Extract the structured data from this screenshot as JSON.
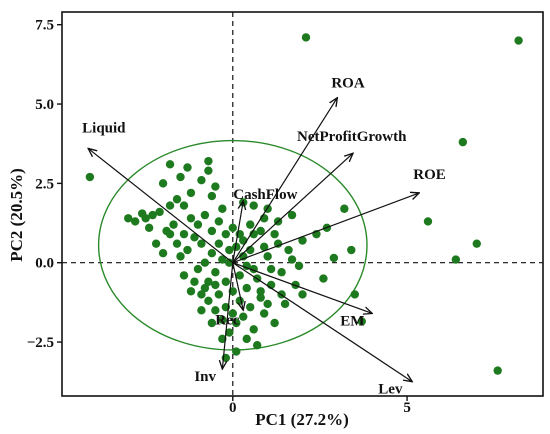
{
  "chart_data": {
    "type": "scatter",
    "title": "",
    "xlabel": "PC1 (27.2%)",
    "ylabel": "PC2 (20.5%)",
    "xlim": [
      -4.9,
      8.9
    ],
    "ylim": [
      -4.2,
      7.9
    ],
    "x_ticks": [
      {
        "value": 0,
        "label": "0"
      },
      {
        "value": 5,
        "label": "5"
      }
    ],
    "y_ticks": [
      {
        "value": 7.5,
        "label": "7.5"
      },
      {
        "value": 5.0,
        "label": "5.0"
      },
      {
        "value": 2.5,
        "label": "2.5"
      },
      {
        "value": 0.0,
        "label": "0.0"
      },
      {
        "value": -2.5,
        "label": "−2.5"
      }
    ],
    "grid": false,
    "reference_lines": {
      "x": 0,
      "y": 0,
      "style": "dashed"
    },
    "colors": {
      "points": "#1e7a1e",
      "ellipse": "#2a8a2a",
      "arrows": "#111111",
      "axes": "#111111"
    },
    "ellipse": {
      "center": [
        0,
        0.55
      ],
      "rx": 3.85,
      "ry": 3.3
    },
    "loadings": [
      {
        "label": "ROA",
        "x": 3.0,
        "y": 5.2
      },
      {
        "label": "NetProfitGrowth",
        "x": 3.45,
        "y": 3.45
      },
      {
        "label": "ROE",
        "x": 5.35,
        "y": 2.2
      },
      {
        "label": "Liquid",
        "x": -4.15,
        "y": 3.6
      },
      {
        "label": "CashFlow",
        "x": 0.3,
        "y": 1.95
      },
      {
        "label": "Rec",
        "x": 0.3,
        "y": -1.5
      },
      {
        "label": "EM",
        "x": 4.0,
        "y": -1.6
      },
      {
        "label": "Lev",
        "x": 5.15,
        "y": -3.75
      },
      {
        "label": "Inv",
        "x": -0.3,
        "y": -3.35
      }
    ],
    "series": [
      {
        "points": [
          [
            2.1,
            7.1
          ],
          [
            8.2,
            7.0
          ],
          [
            6.6,
            3.8
          ],
          [
            5.6,
            1.3
          ],
          [
            7.0,
            0.6
          ],
          [
            6.4,
            0.1
          ],
          [
            7.6,
            -3.4
          ],
          [
            -4.1,
            2.7
          ],
          [
            3.7,
            -1.85
          ],
          [
            3.5,
            -1.0
          ],
          [
            3.4,
            0.4
          ],
          [
            3.2,
            1.7
          ],
          [
            2.0,
            0.7
          ],
          [
            1.9,
            -0.1
          ],
          [
            2.9,
            0.15
          ],
          [
            2.4,
            0.9
          ],
          [
            2.7,
            1.1
          ],
          [
            2.6,
            -0.5
          ],
          [
            -3.0,
            1.4
          ],
          [
            -2.8,
            1.3
          ],
          [
            -2.5,
            1.4
          ],
          [
            -2.3,
            1.5
          ],
          [
            -2.1,
            1.6
          ],
          [
            -2.6,
            1.55
          ],
          [
            -1.8,
            1.8
          ],
          [
            -1.6,
            2.0
          ],
          [
            -1.4,
            1.8
          ],
          [
            -2.0,
            2.5
          ],
          [
            -1.8,
            3.1
          ],
          [
            -1.5,
            2.7
          ],
          [
            -1.3,
            3.0
          ],
          [
            -1.2,
            2.2
          ],
          [
            -0.9,
            2.6
          ],
          [
            -0.7,
            3.2
          ],
          [
            -0.6,
            2.1
          ],
          [
            -0.8,
            1.5
          ],
          [
            -1.0,
            1.2
          ],
          [
            -0.7,
            2.9
          ],
          [
            -0.5,
            2.4
          ],
          [
            -1.7,
            1.2
          ],
          [
            -1.9,
            1.0
          ],
          [
            -1.4,
            0.9
          ],
          [
            -1.1,
            0.8
          ],
          [
            -0.9,
            0.6
          ],
          [
            -1.3,
            0.4
          ],
          [
            -1.6,
            0.6
          ],
          [
            -2.2,
            0.6
          ],
          [
            -2.0,
            0.3
          ],
          [
            -1.2,
            1.4
          ],
          [
            -0.4,
            1.3
          ],
          [
            0.3,
            1.9
          ],
          [
            0.6,
            1.8
          ],
          [
            1.0,
            1.7
          ],
          [
            0.5,
            1.2
          ],
          [
            0.8,
            1.0
          ],
          [
            1.3,
            1.3
          ],
          [
            1.7,
            1.5
          ],
          [
            0.2,
            0.9
          ],
          [
            1.0,
            0.2
          ],
          [
            1.3,
            0.6
          ],
          [
            1.6,
            0.4
          ],
          [
            1.1,
            -0.2
          ],
          [
            1.4,
            -0.3
          ],
          [
            0.5,
            0.4
          ],
          [
            0.9,
            0.5
          ],
          [
            0.3,
            0.2
          ],
          [
            0.7,
            -0.5
          ],
          [
            1.1,
            -0.7
          ],
          [
            1.4,
            -1.0
          ],
          [
            0.8,
            -1.1
          ],
          [
            0.5,
            -1.4
          ],
          [
            0.3,
            -1.7
          ],
          [
            0.1,
            -1.9
          ],
          [
            0.9,
            -1.6
          ],
          [
            1.2,
            -1.9
          ],
          [
            0.6,
            -2.1
          ],
          [
            -0.1,
            -2.2
          ],
          [
            -0.3,
            -1.8
          ],
          [
            -0.5,
            -1.5
          ],
          [
            -0.7,
            -1.2
          ],
          [
            -0.9,
            -1.0
          ],
          [
            -1.1,
            -0.6
          ],
          [
            -1.0,
            -0.2
          ],
          [
            -0.8,
            0.0
          ],
          [
            -0.6,
            0.3
          ],
          [
            -0.4,
            0.6
          ],
          [
            -0.2,
            0.9
          ],
          [
            0.0,
            1.1
          ],
          [
            -0.3,
            0.1
          ],
          [
            -0.5,
            -0.3
          ],
          [
            -0.2,
            -0.6
          ],
          [
            0.0,
            -0.9
          ],
          [
            0.2,
            -0.4
          ],
          [
            -0.4,
            -1.0
          ],
          [
            0.4,
            -0.8
          ],
          [
            0.6,
            -0.2
          ],
          [
            0.1,
            0.5
          ],
          [
            -0.7,
            -0.6
          ],
          [
            -0.9,
            -1.5
          ],
          [
            -0.6,
            -1.9
          ],
          [
            -0.2,
            -1.4
          ],
          [
            0.2,
            -1.2
          ],
          [
            0.4,
            -2.4
          ],
          [
            0.7,
            -2.6
          ],
          [
            0.1,
            -2.8
          ],
          [
            -0.2,
            -3.0
          ],
          [
            1.5,
            -1.3
          ],
          [
            1.8,
            -0.7
          ],
          [
            1.7,
            0.1
          ],
          [
            2.0,
            -1.0
          ],
          [
            -1.2,
            -0.9
          ],
          [
            -1.4,
            -0.4
          ],
          [
            -0.8,
            -0.8
          ],
          [
            -0.1,
            0.0
          ],
          [
            0.3,
            0.7
          ],
          [
            0.6,
            0.9
          ],
          [
            -0.6,
            1.0
          ],
          [
            -1.5,
            0.2
          ],
          [
            -1.8,
            0.9
          ],
          [
            -2.4,
            1.1
          ],
          [
            -0.3,
            1.7
          ],
          [
            -0.1,
            0.4
          ],
          [
            0.9,
            1.4
          ],
          [
            1.2,
            0.9
          ],
          [
            0.4,
            -0.1
          ],
          [
            0.8,
            -0.9
          ],
          [
            1.0,
            -1.3
          ],
          [
            -0.5,
            -0.7
          ],
          [
            -0.3,
            -2.4
          ],
          [
            0.0,
            -1.6
          ]
        ]
      }
    ]
  }
}
